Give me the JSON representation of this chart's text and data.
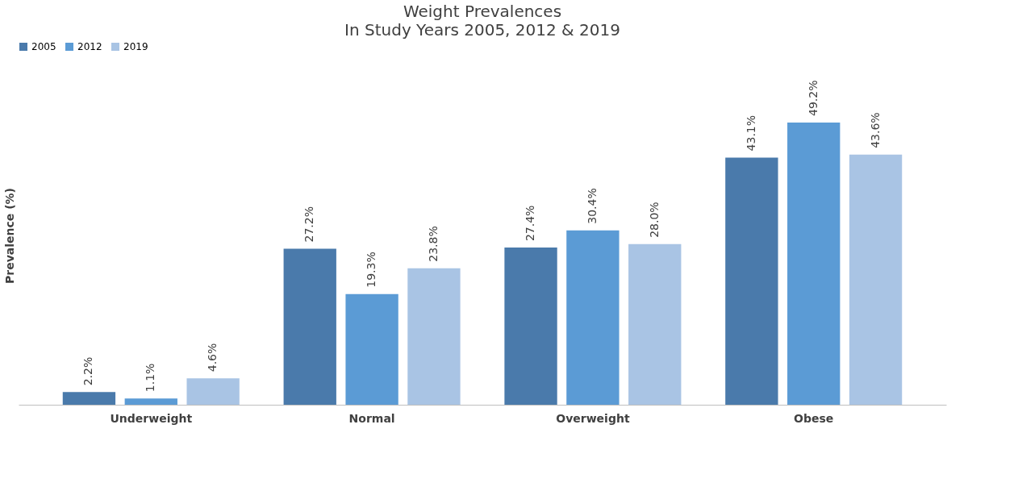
{
  "chart_data": {
    "type": "bar",
    "title": "Weight Prevalences",
    "subtitle": "In Study Years 2005, 2012 & 2019",
    "ylabel": "Prevalence (%)",
    "categories": [
      "Underweight",
      "Normal",
      "Overweight",
      "Obese"
    ],
    "series": [
      {
        "name": "2005",
        "color": "#4a7aab",
        "values": [
          2.2,
          27.2,
          27.4,
          43.1
        ],
        "value_labels": [
          "2.2%",
          "27.2%",
          "27.4%",
          "43.1%"
        ]
      },
      {
        "name": "2012",
        "color": "#5b9bd5",
        "values": [
          1.1,
          19.3,
          30.4,
          49.2
        ],
        "value_labels": [
          "1.1%",
          "19.3%",
          "30.4%",
          "49.2%"
        ]
      },
      {
        "name": "2019",
        "color": "#a9c4e4",
        "values": [
          4.6,
          23.8,
          28.0,
          43.6
        ],
        "value_labels": [
          "4.6%",
          "23.8%",
          "28.0%",
          "43.6%"
        ]
      }
    ],
    "legend": "top",
    "grid": false
  }
}
